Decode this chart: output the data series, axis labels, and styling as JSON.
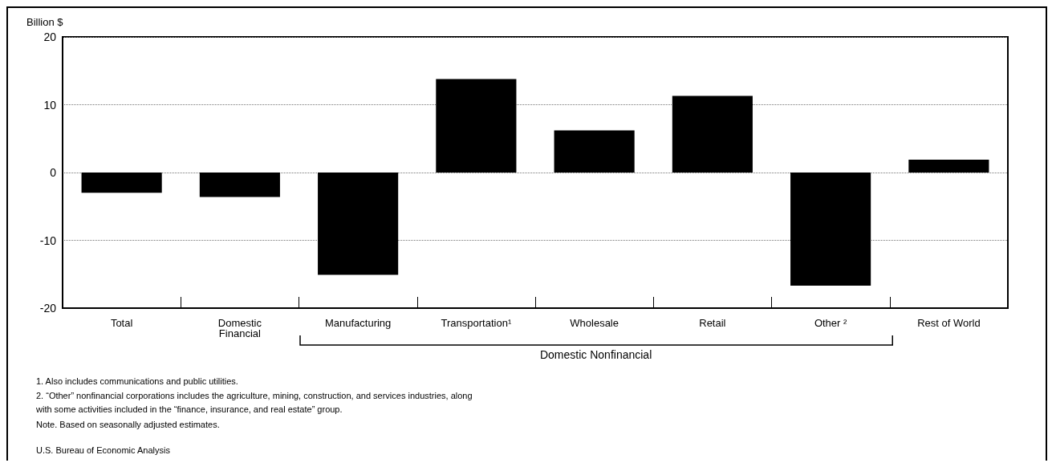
{
  "chart_data": {
    "type": "bar",
    "ylabel": "Billion $",
    "categories": [
      "Total",
      "Domestic\nFinancial",
      "Manufacturing",
      "Transportation¹",
      "Wholesale",
      "Retail",
      "Other ²",
      "Rest of World"
    ],
    "values": [
      -3.0,
      -3.6,
      -15.1,
      13.8,
      6.2,
      11.3,
      -16.7,
      1.9
    ],
    "color": "#000000",
    "ylim": [
      -20,
      20
    ],
    "yticks": [
      -20,
      -10,
      0,
      10,
      20
    ],
    "grid": "y",
    "annotations": [
      "Domestic Nonfinancial",
      "1. Also includes communications and public utilities.",
      "2. “Other” nonfinancial corporations includes the agriculture, mining, construction, and services industries, along with some activities included in the “finance, insurance, and real estate” group.",
      "Note. Based on seasonally adjusted estimates.",
      "U.S. Bureau of Economic Analysis"
    ]
  }
}
